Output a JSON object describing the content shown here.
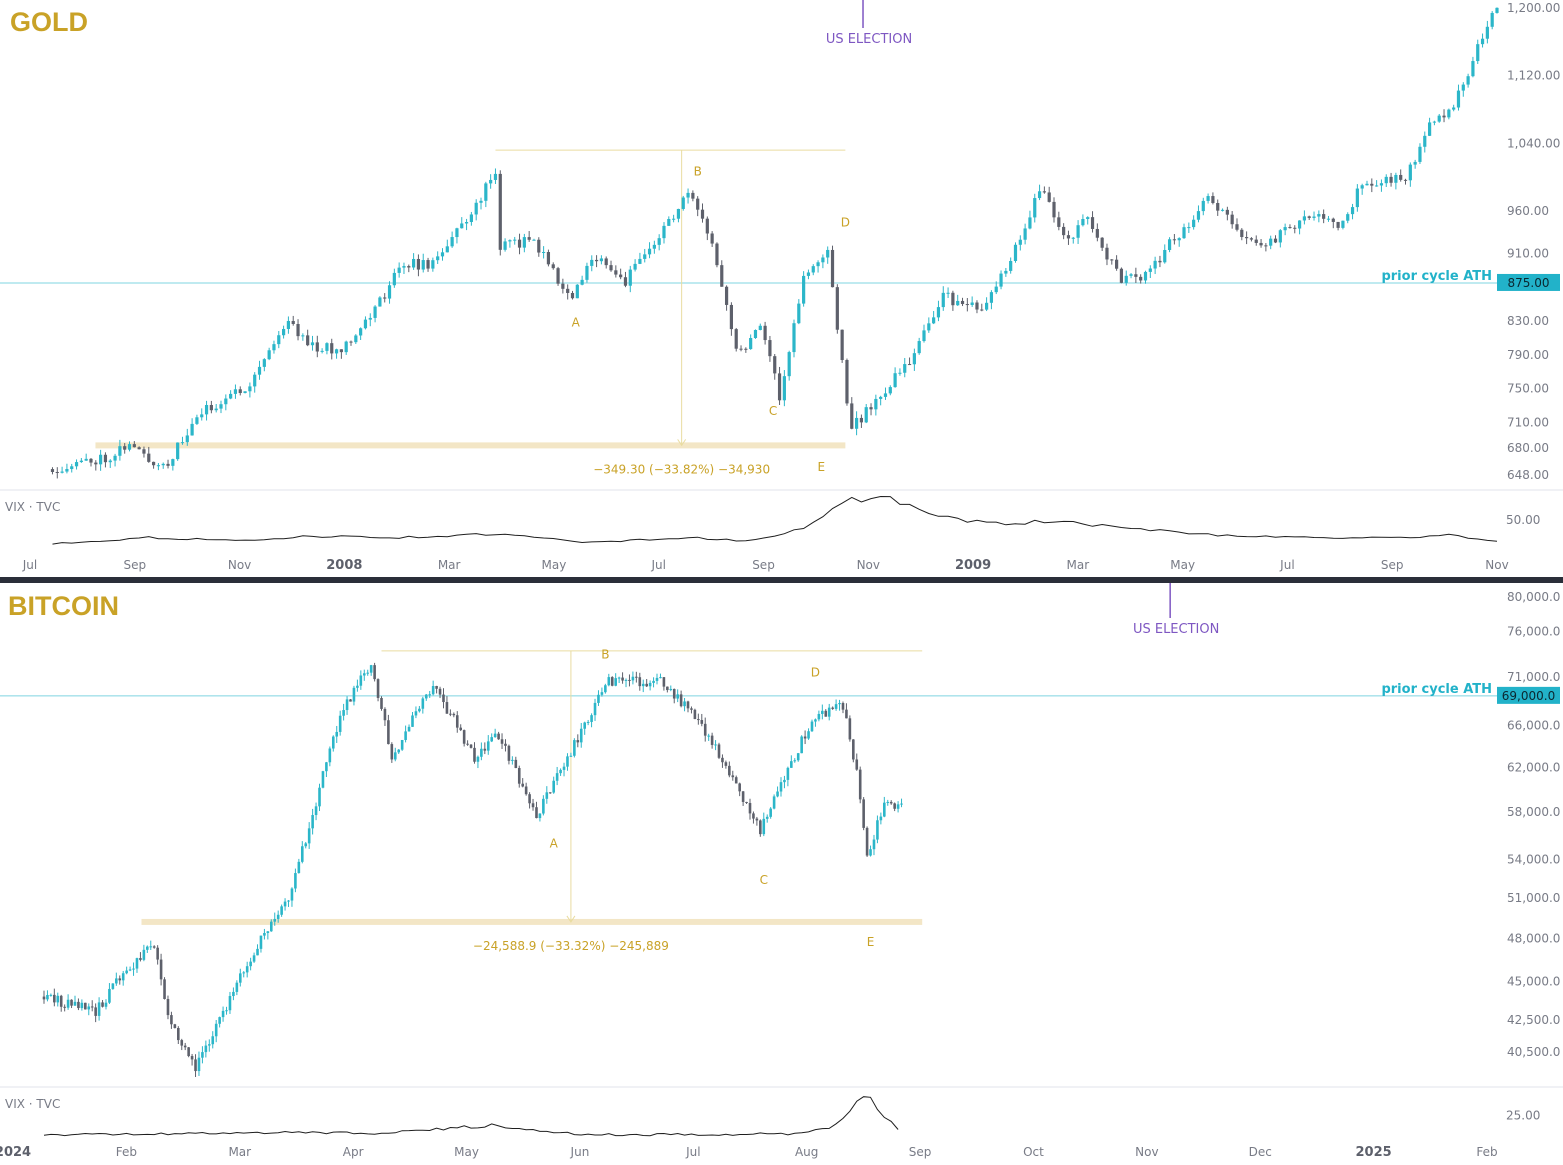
{
  "colors": {
    "up": "#2bb6c9",
    "down": "#5d606b",
    "title": "#c9a227",
    "election": "#7e57c2",
    "ath": "#22b2c9",
    "range": "#f3e6c6",
    "vix": "#1e1e1e",
    "divider": "#2a2e39"
  },
  "chart_data": [
    {
      "type": "candlestick",
      "title": "GOLD",
      "price_ticks": [
        "1,200.00",
        "1,120.00",
        "1,040.00",
        "960.00",
        "910.00",
        "830.00",
        "790.00",
        "750.00",
        "710.00",
        "680.00",
        "648.00"
      ],
      "price_tick_values": [
        1200,
        1120,
        1040,
        960,
        910,
        830,
        790,
        750,
        710,
        680,
        648
      ],
      "x_labels": [
        "Jul",
        "Sep",
        "Nov",
        "2008",
        "Mar",
        "May",
        "Jul",
        "Sep",
        "Nov",
        "2009",
        "Mar",
        "May",
        "Jul",
        "Sep",
        "Nov"
      ],
      "x_label_bold": [
        false,
        false,
        false,
        true,
        false,
        false,
        false,
        false,
        false,
        true,
        false,
        false,
        false,
        false,
        false
      ],
      "x_start": "2007-06",
      "x_end": "2009-12",
      "annotations": {
        "election_label": "US ELECTION",
        "election_date": "2008-11",
        "ath_label": "prior cycle ATH",
        "ath_value": 875,
        "ath_tag": "875.00",
        "measure_text": "−349.30 (−33.82%) −34,930",
        "measure_top": 1032,
        "measure_bottom": 683,
        "waves": [
          {
            "label": "A",
            "date": "2008-05",
            "price": 845
          },
          {
            "label": "B",
            "date": "2008-07",
            "price": 990
          },
          {
            "label": "C",
            "date": "2008-09",
            "price": 740
          },
          {
            "label": "D",
            "date": "2008-10",
            "price": 930
          },
          {
            "label": "E",
            "date": "2008-10",
            "price": 681
          }
        ]
      },
      "price_path": [
        [
          "2007-06-15",
          655
        ],
        [
          "2007-07-20",
          670
        ],
        [
          "2007-08-01",
          685
        ],
        [
          "2007-08-15",
          665
        ],
        [
          "2007-08-25",
          660
        ],
        [
          "2007-09-15",
          720
        ],
        [
          "2007-10-15",
          755
        ],
        [
          "2007-11-08",
          830
        ],
        [
          "2007-11-25",
          800
        ],
        [
          "2007-12-10",
          795
        ],
        [
          "2007-12-31",
          838
        ],
        [
          "2008-01-20",
          900
        ],
        [
          "2008-02-05",
          895
        ],
        [
          "2008-02-28",
          950
        ],
        [
          "2008-03-17",
          1005
        ],
        [
          "2008-03-20",
          920
        ],
        [
          "2008-04-10",
          925
        ],
        [
          "2008-04-25",
          880
        ],
        [
          "2008-05-02",
          855
        ],
        [
          "2008-05-20",
          910
        ],
        [
          "2008-06-05",
          875
        ],
        [
          "2008-06-25",
          925
        ],
        [
          "2008-07-15",
          980
        ],
        [
          "2008-07-31",
          920
        ],
        [
          "2008-08-15",
          790
        ],
        [
          "2008-08-30",
          830
        ],
        [
          "2008-09-10",
          740
        ],
        [
          "2008-09-25",
          880
        ],
        [
          "2008-10-10",
          910
        ],
        [
          "2008-10-20",
          770
        ],
        [
          "2008-10-24",
          700
        ],
        [
          "2008-11-15",
          750
        ],
        [
          "2008-11-30",
          780
        ],
        [
          "2008-12-20",
          860
        ],
        [
          "2009-01-15",
          840
        ],
        [
          "2009-02-05",
          920
        ],
        [
          "2009-02-20",
          990
        ],
        [
          "2009-03-10",
          920
        ],
        [
          "2009-03-20",
          955
        ],
        [
          "2009-04-10",
          880
        ],
        [
          "2009-04-25",
          880
        ],
        [
          "2009-05-15",
          930
        ],
        [
          "2009-06-05",
          975
        ],
        [
          "2009-06-25",
          930
        ],
        [
          "2009-07-10",
          920
        ],
        [
          "2009-08-05",
          955
        ],
        [
          "2009-08-25",
          945
        ],
        [
          "2009-09-08",
          990
        ],
        [
          "2009-10-05",
          1000
        ],
        [
          "2009-10-20",
          1060
        ],
        [
          "2009-11-05",
          1090
        ],
        [
          "2009-11-25",
          1180
        ],
        [
          "2009-12-03",
          1215
        ]
      ],
      "vix": {
        "label": "VIX · TVC",
        "tick": "50.00",
        "tick_value": 50,
        "range": [
          0,
          90
        ],
        "path": [
          [
            "2007-06-15",
            16
          ],
          [
            "2007-08-15",
            25
          ],
          [
            "2007-10-15",
            20
          ],
          [
            "2007-11-20",
            27
          ],
          [
            "2008-01-20",
            25
          ],
          [
            "2008-03-17",
            30
          ],
          [
            "2008-05-15",
            18
          ],
          [
            "2008-07-15",
            25
          ],
          [
            "2008-08-20",
            20
          ],
          [
            "2008-09-15",
            32
          ],
          [
            "2008-10-01",
            45
          ],
          [
            "2008-10-24",
            80
          ],
          [
            "2008-11-20",
            80
          ],
          [
            "2008-12-15",
            55
          ],
          [
            "2009-01-20",
            45
          ],
          [
            "2009-03-05",
            48
          ],
          [
            "2009-04-20",
            37
          ],
          [
            "2009-06-15",
            28
          ],
          [
            "2009-08-15",
            25
          ],
          [
            "2009-10-05",
            24
          ],
          [
            "2009-10-30",
            30
          ],
          [
            "2009-11-20",
            22
          ],
          [
            "2009-12-03",
            20
          ]
        ]
      }
    },
    {
      "type": "candlestick",
      "title": "BITCOIN",
      "price_ticks": [
        "80,000.0",
        "76,000.0",
        "71,000.0",
        "66,000.0",
        "62,000.0",
        "58,000.0",
        "54,000.0",
        "51,000.0",
        "48,000.0",
        "45,000.0",
        "42,500.0",
        "40,500.0"
      ],
      "price_tick_values": [
        80000,
        76000,
        71000,
        66000,
        62000,
        58000,
        54000,
        51000,
        48000,
        45000,
        42500,
        40500
      ],
      "x_labels": [
        "2024",
        "Feb",
        "Mar",
        "Apr",
        "May",
        "Jun",
        "Jul",
        "Aug",
        "Sep",
        "Oct",
        "Nov",
        "Dec",
        "2025",
        "Feb"
      ],
      "x_label_bold": [
        true,
        false,
        false,
        false,
        false,
        false,
        false,
        false,
        false,
        false,
        false,
        false,
        true,
        false
      ],
      "x_start": "2023-12",
      "x_end": "2025-02",
      "annotations": {
        "election_label": "US ELECTION",
        "election_date": "2024-11",
        "ath_label": "prior cycle ATH",
        "ath_value": 69000,
        "ath_tag": "69,000.0",
        "measure_text": "−24,588.9 (−33.32%) −245,889",
        "measure_top": 73800,
        "measure_bottom": 49200,
        "waves": [
          {
            "label": "A",
            "date": "2024-05",
            "price": 56500
          },
          {
            "label": "B",
            "date": "2024-05",
            "price": 71900
          },
          {
            "label": "C",
            "date": "2024-07",
            "price": 53500
          },
          {
            "label": "D",
            "date": "2024-07",
            "price": 70000
          },
          {
            "label": "E",
            "date": "2024-08",
            "price": 49200
          }
        ]
      },
      "price_path": [
        [
          "2023-12-10",
          44000
        ],
        [
          "2023-12-25",
          43000
        ],
        [
          "2024-01-02",
          45500
        ],
        [
          "2024-01-11",
          47500
        ],
        [
          "2024-01-15",
          42800
        ],
        [
          "2024-01-23",
          39500
        ],
        [
          "2024-01-31",
          43000
        ],
        [
          "2024-02-10",
          47500
        ],
        [
          "2024-02-20",
          51500
        ],
        [
          "2024-02-28",
          60000
        ],
        [
          "2024-03-05",
          67000
        ],
        [
          "2024-03-14",
          72500
        ],
        [
          "2024-03-20",
          63000
        ],
        [
          "2024-04-01",
          70000
        ],
        [
          "2024-04-13",
          63000
        ],
        [
          "2024-04-20",
          65000
        ],
        [
          "2024-05-01",
          57500
        ],
        [
          "2024-05-15",
          66000
        ],
        [
          "2024-05-21",
          70500
        ],
        [
          "2024-06-07",
          70500
        ],
        [
          "2024-06-20",
          65000
        ],
        [
          "2024-07-05",
          56500
        ],
        [
          "2024-07-20",
          66500
        ],
        [
          "2024-07-29",
          68000
        ],
        [
          "2024-08-02",
          61500
        ],
        [
          "2024-08-05",
          54000
        ],
        [
          "2024-08-10",
          59000
        ],
        [
          "2024-08-15",
          58500
        ]
      ],
      "vix": {
        "label": "VIX · TVC",
        "tick": "25.00",
        "tick_value": 25,
        "range": [
          9,
          42
        ],
        "path": [
          [
            "2023-12-10",
            12.5
          ],
          [
            "2024-01-15",
            13
          ],
          [
            "2024-02-15",
            14
          ],
          [
            "2024-03-15",
            13.5
          ],
          [
            "2024-04-19",
            18.5
          ],
          [
            "2024-05-15",
            12.5
          ],
          [
            "2024-06-15",
            12.5
          ],
          [
            "2024-07-15",
            13
          ],
          [
            "2024-07-26",
            18
          ],
          [
            "2024-08-05",
            38.5
          ],
          [
            "2024-08-10",
            24
          ],
          [
            "2024-08-15",
            15
          ]
        ]
      }
    }
  ]
}
